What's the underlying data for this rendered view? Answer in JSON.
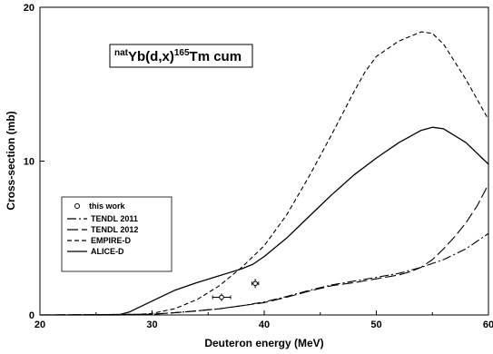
{
  "chart_data": {
    "type": "line",
    "title": {
      "target_sup": "nat",
      "reaction": "Yb(d,x)",
      "product_sup": "165",
      "product": "Tm cum"
    },
    "xlabel": "Deuteron energy (MeV)",
    "ylabel": "Cross-section (mb)",
    "xlim": [
      20,
      60
    ],
    "ylim": [
      0,
      20
    ],
    "xticks": [
      20,
      30,
      40,
      50,
      60
    ],
    "yticks": [
      0,
      10,
      20
    ],
    "grid": false,
    "legend_position": "lower-left",
    "experimental": {
      "name": "this work",
      "points": [
        {
          "x": 36.2,
          "y": 1.15,
          "xerr": 0.8,
          "yerr": 0.25
        },
        {
          "x": 39.2,
          "y": 2.05,
          "xerr": 0.3,
          "yerr": 0.3
        }
      ]
    },
    "series": [
      {
        "name": "TENDL 2011",
        "style": "dash-dot",
        "x": [
          20,
          30,
          33,
          36,
          38,
          40,
          42,
          44,
          46,
          48,
          50,
          52,
          54,
          56,
          58,
          60
        ],
        "y": [
          0,
          0.05,
          0.2,
          0.4,
          0.6,
          0.85,
          1.2,
          1.6,
          1.95,
          2.2,
          2.45,
          2.7,
          3.1,
          3.6,
          4.3,
          5.3
        ]
      },
      {
        "name": "TENDL 2012",
        "style": "long-dash",
        "x": [
          20,
          30,
          33,
          36,
          38,
          40,
          42,
          44,
          46,
          48,
          50,
          52,
          53,
          54,
          55,
          56,
          57,
          58,
          59,
          60
        ],
        "y": [
          0,
          0.05,
          0.2,
          0.4,
          0.6,
          0.8,
          1.15,
          1.55,
          1.9,
          2.1,
          2.35,
          2.6,
          2.8,
          3.1,
          3.6,
          4.3,
          5.1,
          6.0,
          7.1,
          8.5
        ]
      },
      {
        "name": "EMPIRE-D",
        "style": "short-dash",
        "x": [
          20,
          28,
          30,
          32,
          34,
          36,
          38,
          40,
          42,
          44,
          46,
          48,
          49,
          50,
          52,
          54,
          55,
          56,
          58,
          60
        ],
        "y": [
          0,
          0,
          0.1,
          0.4,
          1.0,
          1.9,
          3.1,
          4.5,
          6.5,
          9.0,
          11.7,
          14.5,
          15.8,
          16.8,
          17.8,
          18.4,
          18.3,
          17.6,
          15.3,
          12.7
        ]
      },
      {
        "name": "ALICE-D",
        "style": "solid",
        "x": [
          20,
          27,
          28,
          30,
          32,
          34,
          36,
          38,
          39,
          40,
          42,
          44,
          46,
          48,
          50,
          52,
          54,
          55,
          56,
          58,
          60
        ],
        "y": [
          0,
          0,
          0.2,
          0.9,
          1.6,
          2.1,
          2.55,
          3.0,
          3.3,
          3.8,
          5.0,
          6.4,
          7.8,
          9.1,
          10.2,
          11.2,
          12.0,
          12.2,
          12.1,
          11.2,
          9.8
        ]
      }
    ]
  }
}
